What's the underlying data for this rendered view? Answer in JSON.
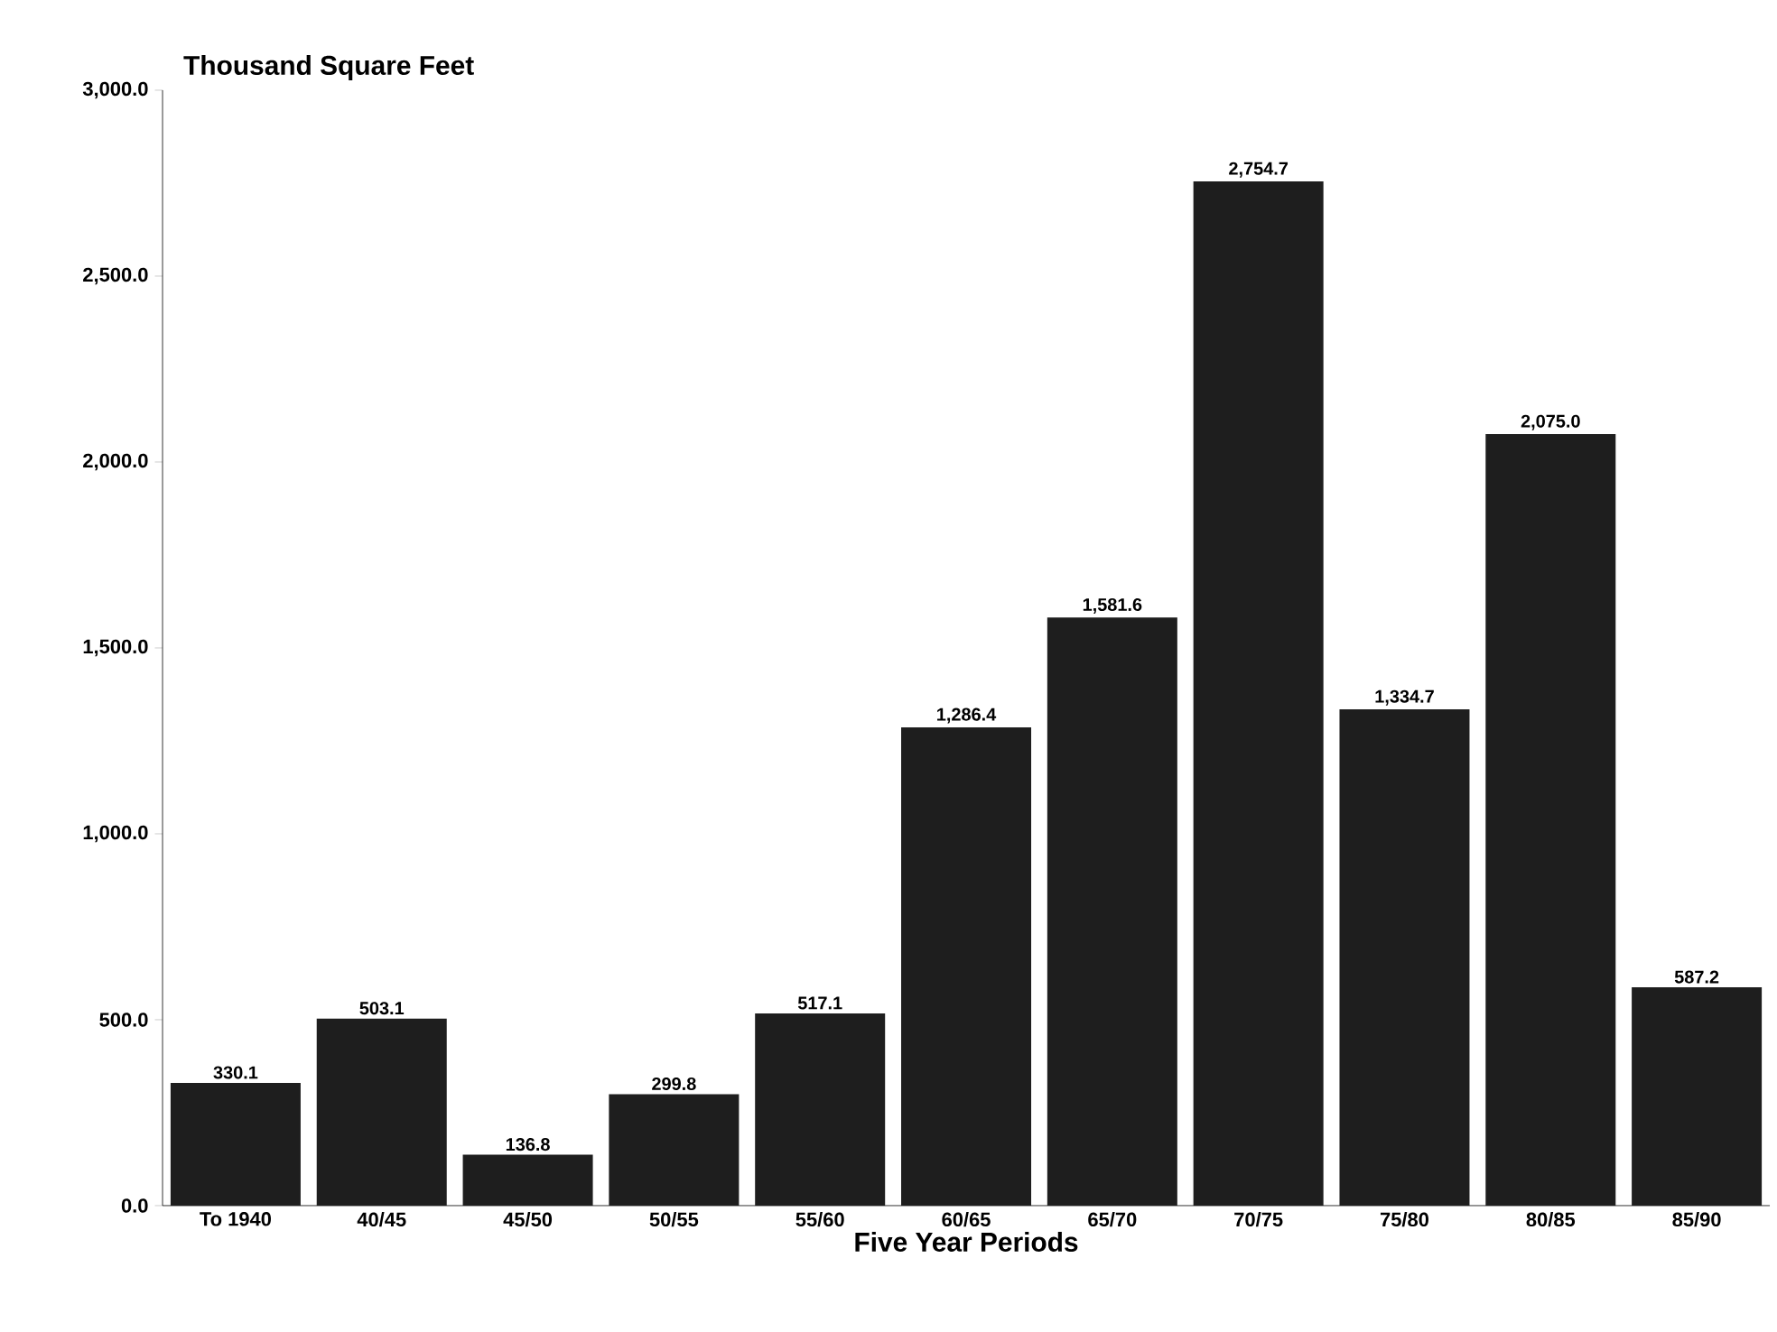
{
  "chart_data": {
    "type": "bar",
    "ylabel": "Thousand Square Feet",
    "xlabel": "Five Year Periods",
    "categories": [
      "To 1940",
      "40/45",
      "45/50",
      "50/55",
      "55/60",
      "60/65",
      "65/70",
      "70/75",
      "75/80",
      "80/85",
      "85/90"
    ],
    "values": [
      330.1,
      503.1,
      136.8,
      299.8,
      517.1,
      1286.4,
      1581.6,
      2754.7,
      1334.7,
      2075.0,
      587.2
    ],
    "value_labels": [
      "330.1",
      "503.1",
      "136.8",
      "299.8",
      "517.1",
      "1,286.4",
      "1,581.6",
      "2,754.7",
      "1,334.7",
      "2,075.0",
      "587.2"
    ],
    "color": "#1e1e1e",
    "ylim": [
      0,
      3000
    ],
    "yticks": [
      {
        "value": 0,
        "label": "0.0"
      },
      {
        "value": 500,
        "label": "500.0"
      },
      {
        "value": 1000,
        "label": "1,000.0"
      },
      {
        "value": 1500,
        "label": "1,500.0"
      },
      {
        "value": 2000,
        "label": "2,000.0"
      },
      {
        "value": 2500,
        "label": "2,500.0"
      },
      {
        "value": 3000,
        "label": "3,000.0"
      }
    ],
    "grid": false
  }
}
